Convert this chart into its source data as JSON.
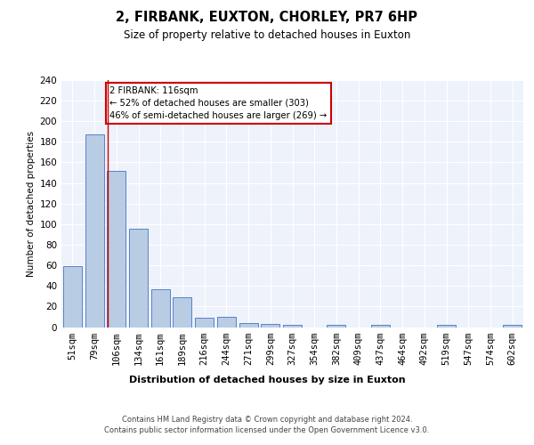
{
  "title1": "2, FIRBANK, EUXTON, CHORLEY, PR7 6HP",
  "title2": "Size of property relative to detached houses in Euxton",
  "xlabel": "Distribution of detached houses by size in Euxton",
  "ylabel": "Number of detached properties",
  "categories": [
    "51sqm",
    "79sqm",
    "106sqm",
    "134sqm",
    "161sqm",
    "189sqm",
    "216sqm",
    "244sqm",
    "271sqm",
    "299sqm",
    "327sqm",
    "354sqm",
    "382sqm",
    "409sqm",
    "437sqm",
    "464sqm",
    "492sqm",
    "519sqm",
    "547sqm",
    "574sqm",
    "602sqm"
  ],
  "values": [
    59,
    187,
    152,
    96,
    37,
    29,
    9,
    10,
    4,
    3,
    2,
    0,
    2,
    0,
    2,
    0,
    0,
    2,
    0,
    0,
    2
  ],
  "bar_color": "#b8cce4",
  "bar_edge_color": "#4472c4",
  "background_color": "#eef2fa",
  "grid_color": "#ffffff",
  "redline_x": 1.6,
  "annotation_text": "2 FIRBANK: 116sqm\n← 52% of detached houses are smaller (303)\n46% of semi-detached houses are larger (269) →",
  "annotation_box_color": "#ffffff",
  "annotation_box_edge": "#cc0000",
  "footnote": "Contains HM Land Registry data © Crown copyright and database right 2024.\nContains public sector information licensed under the Open Government Licence v3.0.",
  "ylim": [
    0,
    240
  ],
  "yticks": [
    0,
    20,
    40,
    60,
    80,
    100,
    120,
    140,
    160,
    180,
    200,
    220,
    240
  ]
}
